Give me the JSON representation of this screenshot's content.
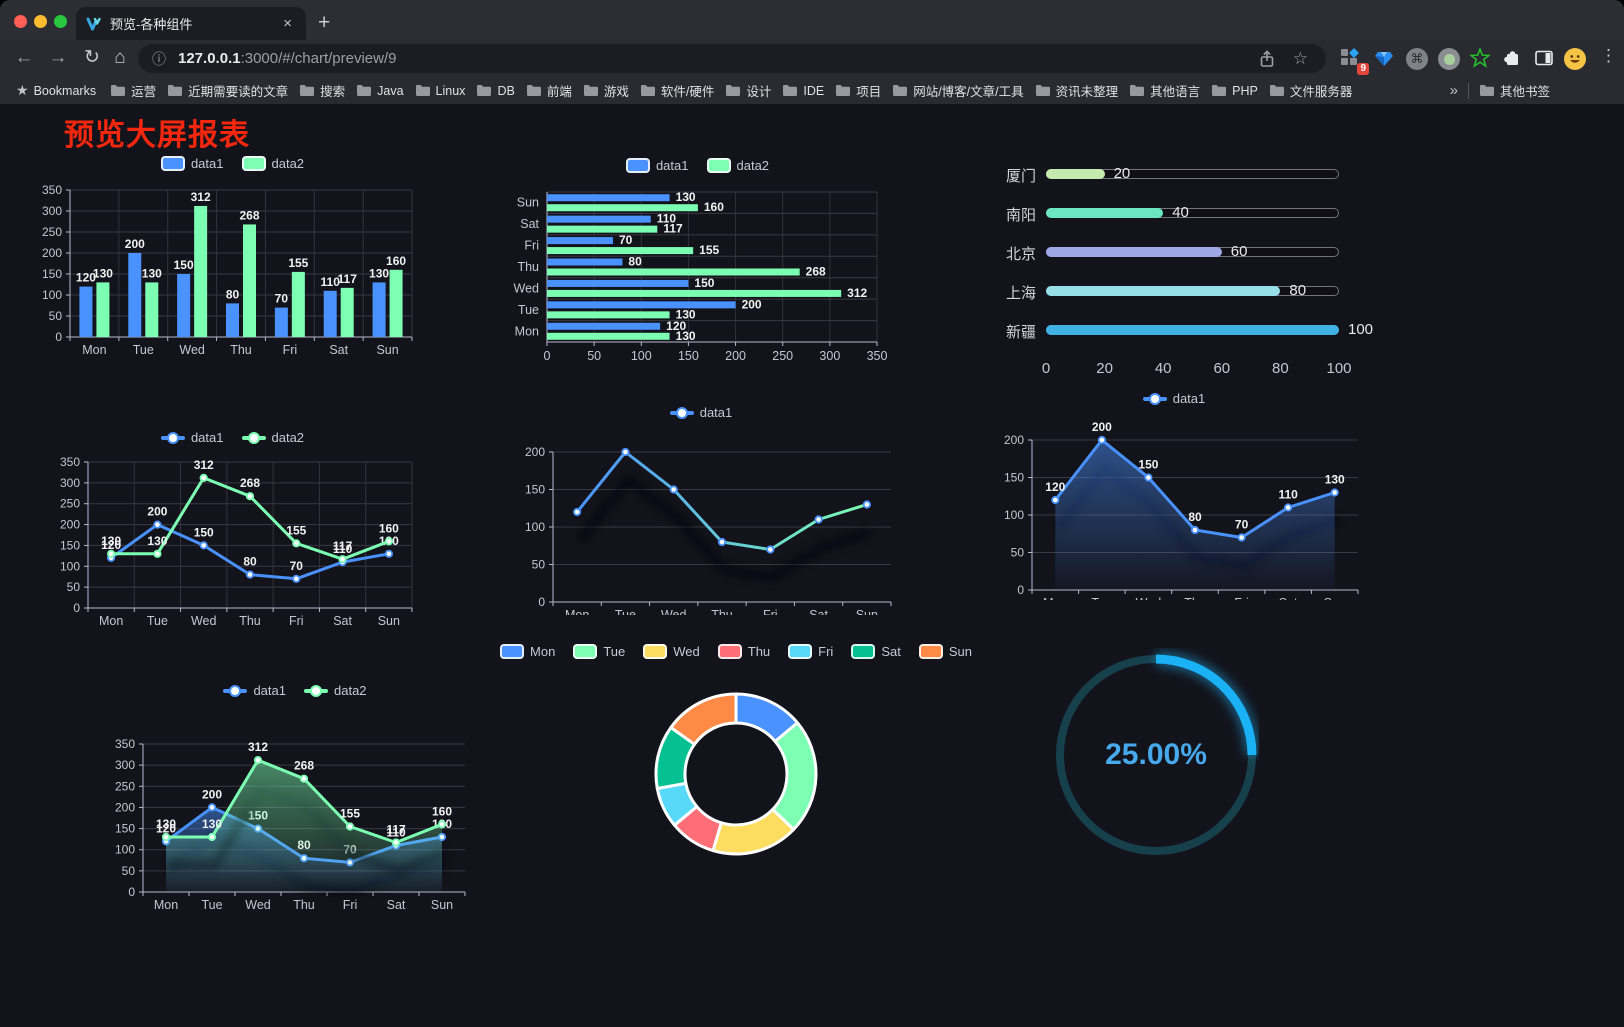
{
  "browser": {
    "tab": {
      "title": "预览-各种组件",
      "close_icon": "×"
    },
    "new_tab_icon": "+",
    "nav": {
      "back": "←",
      "forward": "→",
      "reload": "↻",
      "home": "⌂"
    },
    "omnibox": {
      "info_icon": "ⓘ",
      "url_host": "127.0.0.1",
      "url_rest": ":3000/#/chart/preview/9",
      "bookmark_icon": "☆"
    },
    "extensions": {
      "badge": "9"
    },
    "menu_icon": "⋮",
    "bookmarks_bar": {
      "star_label": "Bookmarks",
      "folders": [
        "运营",
        "近期需要读的文章",
        "搜索",
        "Java",
        "Linux",
        "DB",
        "前端",
        "游戏",
        "软件/硬件",
        "设计",
        "IDE",
        "项目",
        "网站/博客/文章/工具",
        "资讯未整理",
        "其他语言",
        "PHP",
        "文件服务器"
      ],
      "overflow": "»",
      "other": "其他书签"
    }
  },
  "page": {
    "title": "预览大屏报表",
    "title_color": "#f5270e"
  },
  "palette": {
    "blue": "#4992ff",
    "green": "#7cffb2",
    "axis_line": "#b9b8ce",
    "tick_label": "#c6c6d0",
    "grid": "#3a3a46",
    "data_label": "#f2f2f4"
  },
  "chart_data": [
    {
      "id": "bar-vertical",
      "type": "bar",
      "categories": [
        "Mon",
        "Tue",
        "Wed",
        "Thu",
        "Fri",
        "Sat",
        "Sun"
      ],
      "series": [
        {
          "name": "data1",
          "color": "#4992ff",
          "values": [
            120,
            200,
            150,
            80,
            70,
            110,
            130
          ]
        },
        {
          "name": "data2",
          "color": "#7cffb2",
          "values": [
            130,
            130,
            312,
            268,
            155,
            117,
            160
          ]
        }
      ],
      "ylim": [
        0,
        350
      ],
      "ystep": 50,
      "labels": true,
      "grid": true,
      "legend_position": "top"
    },
    {
      "id": "bar-horizontal",
      "type": "bar-horizontal",
      "categories": [
        "Mon",
        "Tue",
        "Wed",
        "Thu",
        "Fri",
        "Sat",
        "Sun"
      ],
      "series": [
        {
          "name": "data1",
          "color": "#4992ff",
          "values": [
            120,
            200,
            150,
            80,
            70,
            110,
            130
          ]
        },
        {
          "name": "data2",
          "color": "#7cffb2",
          "values": [
            130,
            130,
            312,
            268,
            155,
            117,
            160
          ]
        }
      ],
      "xlim": [
        0,
        350
      ],
      "xstep": 50,
      "labels": true,
      "legend_position": "top"
    },
    {
      "id": "progress-bars",
      "type": "bar-progress",
      "items": [
        {
          "label": "厦门",
          "value": 20,
          "color": "#c4ebad"
        },
        {
          "label": "南阳",
          "value": 40,
          "color": "#6be6c1"
        },
        {
          "label": "北京",
          "value": 60,
          "color": "#a0a7e6"
        },
        {
          "label": "上海",
          "value": 80,
          "color": "#96dee8"
        },
        {
          "label": "新疆",
          "value": 100,
          "color": "#3fb1e3"
        }
      ],
      "xlim": [
        0,
        100
      ],
      "xticks": [
        0,
        20,
        40,
        60,
        80,
        100
      ]
    },
    {
      "id": "line-basic",
      "type": "line",
      "categories": [
        "Mon",
        "Tue",
        "Wed",
        "Thu",
        "Fri",
        "Sat",
        "Sun"
      ],
      "series": [
        {
          "name": "data1",
          "color": "#4992ff",
          "values": [
            120,
            200,
            150,
            80,
            70,
            110,
            130
          ]
        },
        {
          "name": "data2",
          "color": "#7cffb2",
          "values": [
            130,
            130,
            312,
            268,
            155,
            117,
            160
          ]
        }
      ],
      "ylim": [
        0,
        350
      ],
      "ystep": 50,
      "labels": true,
      "grid": true,
      "legend_position": "top"
    },
    {
      "id": "line-gradient",
      "type": "line",
      "categories": [
        "Mon",
        "Tue",
        "Wed",
        "Thu",
        "Fri",
        "Sat",
        "Sun"
      ],
      "series": [
        {
          "name": "data1",
          "color": "#4992ff",
          "color2": "#7cffb2",
          "values": [
            120,
            200,
            150,
            80,
            70,
            110,
            130
          ]
        }
      ],
      "ylim": [
        0,
        200
      ],
      "ystep": 50,
      "labels": false,
      "shadow": true,
      "legend_position": "top"
    },
    {
      "id": "line-area",
      "type": "area",
      "categories": [
        "Mon",
        "Tue",
        "Wed",
        "Thu",
        "Fri",
        "Sat",
        "Sun"
      ],
      "series": [
        {
          "name": "data1",
          "color": "#4992ff",
          "values": [
            120,
            200,
            150,
            80,
            70,
            110,
            130
          ],
          "area": true
        }
      ],
      "ylim": [
        0,
        200
      ],
      "ystep": 50,
      "labels": true,
      "shadow": true,
      "legend_position": "top"
    },
    {
      "id": "line-area-two",
      "type": "area",
      "categories": [
        "Mon",
        "Tue",
        "Wed",
        "Thu",
        "Fri",
        "Sat",
        "Sun"
      ],
      "series": [
        {
          "name": "data1",
          "color": "#4992ff",
          "values": [
            120,
            200,
            150,
            80,
            70,
            110,
            130
          ],
          "area": true
        },
        {
          "name": "data2",
          "color": "#7cffb2",
          "values": [
            130,
            130,
            312,
            268,
            155,
            117,
            160
          ],
          "area": true
        }
      ],
      "ylim": [
        0,
        350
      ],
      "ystep": 50,
      "labels": true,
      "shadow": true,
      "legend_position": "top"
    },
    {
      "id": "donut",
      "type": "pie",
      "categories": [
        "Mon",
        "Tue",
        "Wed",
        "Thu",
        "Fri",
        "Sat",
        "Sun"
      ],
      "values": [
        120,
        200,
        150,
        80,
        70,
        110,
        130
      ],
      "colors": [
        "#4992ff",
        "#7cffb2",
        "#fddd60",
        "#ff6e76",
        "#58d9f9",
        "#05c091",
        "#ff8a45"
      ],
      "border_color": "#ffffff",
      "legend_position": "top"
    },
    {
      "id": "gauge",
      "type": "gauge",
      "value": 25,
      "max": 100,
      "label": "25.00%",
      "color": "#1ab1f5",
      "track_color": "#17404d",
      "text_color": "#45a9ec"
    }
  ]
}
